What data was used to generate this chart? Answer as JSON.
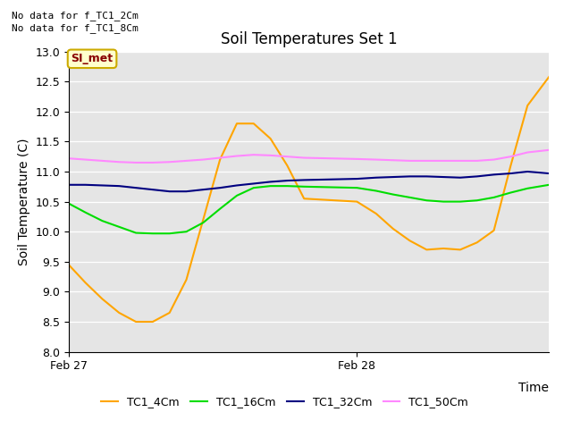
{
  "title": "Soil Temperatures Set 1",
  "xlabel": "Time",
  "ylabel": "Soil Temperature (C)",
  "annotations": [
    "No data for f_TC1_2Cm",
    "No data for f_TC1_8Cm"
  ],
  "legend_label": "SI_met",
  "ylim": [
    8.0,
    13.0
  ],
  "yticks": [
    8.0,
    8.5,
    9.0,
    9.5,
    10.0,
    10.5,
    11.0,
    11.5,
    12.0,
    12.5,
    13.0
  ],
  "xlim": [
    0,
    2.0
  ],
  "xtick_positions": [
    0,
    1.2
  ],
  "xtick_labels": [
    "Feb 27",
    "Feb 28"
  ],
  "background_color": "#e5e5e5",
  "series": {
    "TC1_4Cm": {
      "color": "orange",
      "x": [
        0.0,
        0.07,
        0.14,
        0.21,
        0.28,
        0.35,
        0.42,
        0.49,
        0.56,
        0.63,
        0.7,
        0.77,
        0.84,
        0.91,
        0.98,
        1.2,
        1.28,
        1.35,
        1.42,
        1.49,
        1.56,
        1.63,
        1.7,
        1.77,
        1.84,
        1.91,
        2.0
      ],
      "y": [
        9.45,
        9.15,
        8.88,
        8.65,
        8.5,
        8.5,
        8.65,
        9.2,
        10.2,
        11.2,
        11.8,
        11.8,
        11.55,
        11.1,
        10.55,
        10.5,
        10.3,
        10.05,
        9.85,
        9.7,
        9.72,
        9.7,
        9.82,
        10.02,
        11.1,
        12.1,
        12.58
      ]
    },
    "TC1_16Cm": {
      "color": "#00dd00",
      "x": [
        0.0,
        0.07,
        0.14,
        0.21,
        0.28,
        0.35,
        0.42,
        0.49,
        0.56,
        0.63,
        0.7,
        0.77,
        0.84,
        0.91,
        0.98,
        1.2,
        1.28,
        1.35,
        1.42,
        1.49,
        1.56,
        1.63,
        1.7,
        1.77,
        1.84,
        1.91,
        2.0
      ],
      "y": [
        10.47,
        10.32,
        10.18,
        10.08,
        9.98,
        9.97,
        9.97,
        10.0,
        10.15,
        10.38,
        10.6,
        10.73,
        10.76,
        10.76,
        10.75,
        10.73,
        10.68,
        10.62,
        10.57,
        10.52,
        10.5,
        10.5,
        10.52,
        10.57,
        10.65,
        10.72,
        10.78
      ]
    },
    "TC1_32Cm": {
      "color": "navy",
      "x": [
        0.0,
        0.07,
        0.14,
        0.21,
        0.28,
        0.35,
        0.42,
        0.49,
        0.56,
        0.63,
        0.7,
        0.77,
        0.84,
        0.91,
        0.98,
        1.2,
        1.28,
        1.35,
        1.42,
        1.49,
        1.56,
        1.63,
        1.7,
        1.77,
        1.84,
        1.91,
        2.0
      ],
      "y": [
        10.78,
        10.78,
        10.77,
        10.76,
        10.73,
        10.7,
        10.67,
        10.67,
        10.7,
        10.73,
        10.77,
        10.8,
        10.83,
        10.85,
        10.86,
        10.88,
        10.9,
        10.91,
        10.92,
        10.92,
        10.91,
        10.9,
        10.92,
        10.95,
        10.97,
        11.0,
        10.97
      ]
    },
    "TC1_50Cm": {
      "color": "#ff88ff",
      "x": [
        0.0,
        0.07,
        0.14,
        0.21,
        0.28,
        0.35,
        0.42,
        0.49,
        0.56,
        0.63,
        0.7,
        0.77,
        0.84,
        0.91,
        0.98,
        1.2,
        1.28,
        1.35,
        1.42,
        1.49,
        1.56,
        1.63,
        1.7,
        1.77,
        1.84,
        1.91,
        2.0
      ],
      "y": [
        11.22,
        11.2,
        11.18,
        11.16,
        11.15,
        11.15,
        11.16,
        11.18,
        11.2,
        11.23,
        11.26,
        11.28,
        11.27,
        11.25,
        11.23,
        11.21,
        11.2,
        11.19,
        11.18,
        11.18,
        11.18,
        11.18,
        11.18,
        11.2,
        11.25,
        11.32,
        11.36
      ]
    }
  },
  "legend_box_facecolor": "#ffffcc",
  "legend_box_edgecolor": "#ccaa00",
  "legend_text_color": "#880000",
  "title_fontsize": 12,
  "axis_label_fontsize": 10,
  "tick_fontsize": 9
}
